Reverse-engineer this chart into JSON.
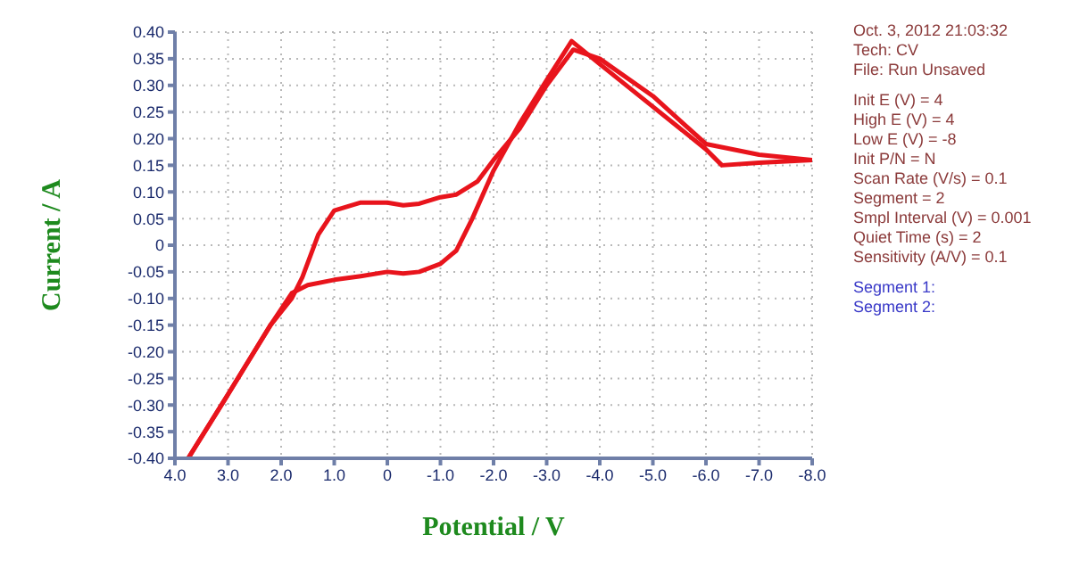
{
  "chart_data": {
    "type": "line",
    "xlabel": "Potential / V",
    "ylabel": "Current / A",
    "xlim": [
      4,
      -8
    ],
    "ylim": [
      -0.4,
      0.4
    ],
    "xticks": [
      {
        "value": 4,
        "label": "4.0"
      },
      {
        "value": 3,
        "label": "3.0"
      },
      {
        "value": 2,
        "label": "2.0"
      },
      {
        "value": 1,
        "label": "1.0"
      },
      0,
      {
        "value": -1,
        "label": "-1.0"
      },
      {
        "value": -2,
        "label": "-2.0"
      },
      {
        "value": -3,
        "label": "-3.0"
      },
      {
        "value": -4,
        "label": "-4.0"
      },
      {
        "value": -5,
        "label": "-5.0"
      },
      {
        "value": -6,
        "label": "-6.0"
      },
      {
        "value": -7,
        "label": "-7.0"
      },
      {
        "value": -8,
        "label": "-8.0"
      }
    ],
    "yticks": [
      {
        "value": 0.4,
        "label": "0.40"
      },
      0.35,
      {
        "value": 0.3,
        "label": "0.30"
      },
      0.25,
      {
        "value": 0.2,
        "label": "0.20"
      },
      0.15,
      {
        "value": 0.1,
        "label": "0.10"
      },
      0.05,
      0,
      -0.05,
      {
        "value": -0.1,
        "label": "-0.10"
      },
      -0.15,
      {
        "value": -0.2,
        "label": "-0.20"
      },
      -0.25,
      {
        "value": -0.3,
        "label": "-0.30"
      },
      -0.35,
      {
        "value": -0.4,
        "label": "-0.40"
      }
    ],
    "grid": true,
    "legend": false,
    "marker": "none",
    "line_style": "solid",
    "series": [
      {
        "color": "#e8141c",
        "x": [
          3.75,
          3.0,
          2.2,
          1.8,
          1.5,
          1.0,
          0.5,
          0,
          -0.3,
          -0.6,
          -1.0,
          -1.3,
          -1.6,
          -2.0,
          -2.5,
          -3.0,
          -3.47,
          -4.0,
          -5.0,
          -6.0,
          -6.3,
          -7.0,
          -8.0
        ],
        "values": [
          -0.4,
          -0.28,
          -0.15,
          -0.09,
          -0.075,
          -0.065,
          -0.058,
          -0.05,
          -0.053,
          -0.05,
          -0.035,
          -0.01,
          0.05,
          0.14,
          0.23,
          0.31,
          0.383,
          0.34,
          0.26,
          0.18,
          0.15,
          0.155,
          0.16
        ]
      },
      {
        "color": "#e8141c",
        "x": [
          -8.0,
          -7.0,
          -6.0,
          -5.0,
          -4.0,
          -3.5,
          -3.0,
          -2.5,
          -2.0,
          -1.7,
          -1.3,
          -1.0,
          -0.6,
          -0.3,
          0,
          0.5,
          1.0,
          1.3,
          1.6,
          1.8,
          2.2,
          3.0,
          3.75
        ],
        "values": [
          0.16,
          0.17,
          0.19,
          0.28,
          0.35,
          0.367,
          0.3,
          0.22,
          0.16,
          0.12,
          0.095,
          0.09,
          0.078,
          0.075,
          0.08,
          0.08,
          0.065,
          0.02,
          -0.06,
          -0.1,
          -0.15,
          -0.28,
          -0.4
        ]
      }
    ],
    "annotations": [
      "Oct. 3, 2012   21:03:32",
      "Tech: CV",
      "File: Run Unsaved",
      "Init E (V) = 4",
      "High E (V) = 4",
      "Low E (V) = -8",
      "Init P/N = N",
      "Scan Rate (V/s) = 0.1",
      "Segment = 2",
      "Smpl Interval (V) = 0.001",
      "Quiet Time (s) = 2",
      "Sensitivity (A/V) = 0.1",
      "Segment 1:",
      "Segment 2:"
    ]
  }
}
